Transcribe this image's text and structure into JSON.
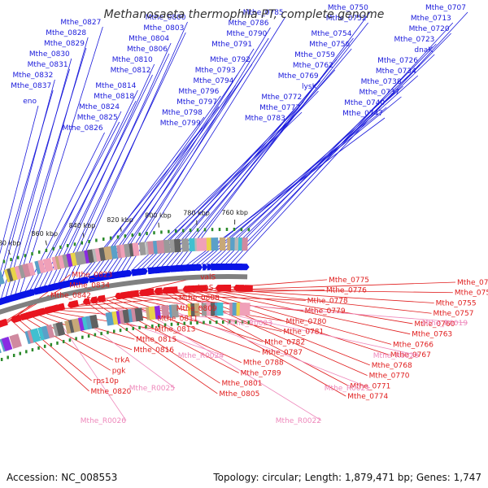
{
  "title": "Methanosaeta thermophila PT, complete genome",
  "accession": "Accession: NC_008553",
  "summary": "Topology: circular; Length: 1,879,471 bp; Genes: 1,747",
  "colors": {
    "forward_label": "#1a1adb",
    "reverse_label": "#e01c1c",
    "rna_label": "#ee88bb",
    "backbone": "#808080",
    "forward_arrow": "#0a14e6",
    "reverse_arrow": "#e8141e"
  },
  "kbp_marks": [
    "760 kbp",
    "780 kbp",
    "800 kbp",
    "820 kbp",
    "840 kbp",
    "860 kbp",
    "880 kbp",
    "900 kbp"
  ],
  "forward_labels": [
    "Mthe_0707",
    "Mthe_0713",
    "Mthe_0720",
    "Mthe_0723",
    "dnaK",
    "Mthe_0726",
    "Mthe_0734",
    "Mthe_0738",
    "Mthe_0737",
    "Mthe_0740",
    "Mthe_0747",
    "Mthe_0750",
    "Mthe_0752",
    "Mthe_0754",
    "Mthe_0756",
    "Mthe_0759",
    "Mthe_0762",
    "Mthe_0769",
    "lysK",
    "Mthe_0772",
    "Mthe_0777",
    "Mthe_0783",
    "Mthe_0785",
    "Mthe_0786",
    "Mthe_0790",
    "Mthe_0791",
    "Mthe_0792",
    "Mthe_0793",
    "Mthe_0794",
    "Mthe_0796",
    "Mthe_0797",
    "Mthe_0798",
    "Mthe_0799",
    "Mthe_0800",
    "Mthe_0803",
    "Mthe_0804",
    "Mthe_0806",
    "Mthe_0810",
    "Mthe_0812",
    "Mthe_0814",
    "Mthe_0818",
    "Mthe_0824",
    "Mthe_0825",
    "Mthe_0826",
    "Mthe_0827",
    "Mthe_0828",
    "Mthe_0829",
    "Mthe_0830",
    "Mthe_0831",
    "Mthe_0832",
    "Mthe_0837",
    "eno"
  ],
  "reverse_labels": [
    "Mthe_0764",
    "Mthe_0753",
    "Mthe_0755",
    "Mthe_0757",
    "Mthe_0760",
    "Mthe_0763",
    "Mthe_0766",
    "Mthe_0767",
    "Mthe_0768",
    "Mthe_0770",
    "Mthe_0771",
    "Mthe_0774",
    "Mthe_0775",
    "Mthe_0776",
    "Mthe_0778",
    "Mthe_0779",
    "Mthe_0780",
    "Mthe_0781",
    "Mthe_0782",
    "Mthe_0787",
    "Mthe_0788",
    "Mthe_0789",
    "Mthe_0801",
    "Mthe_0805",
    "valS",
    "leuS",
    "Mthe_0808",
    "Mthe_0809",
    "Mthe_0811",
    "Mthe_0813",
    "Mthe_0815",
    "Mthe_0816",
    "trkA",
    "pgk",
    "rps10p",
    "Mthe_0820",
    "Mthe_0823",
    "Mthe_0834",
    "Mthe_0842"
  ],
  "rna_labels": [
    "Mthe_R0019",
    "Mthe_R0020",
    "Mthe_R0021",
    "Mthe_R0022",
    "Mthe_R0023",
    "Mthe_R0024",
    "Mthe_R0025",
    "Mthe_R0026"
  ]
}
